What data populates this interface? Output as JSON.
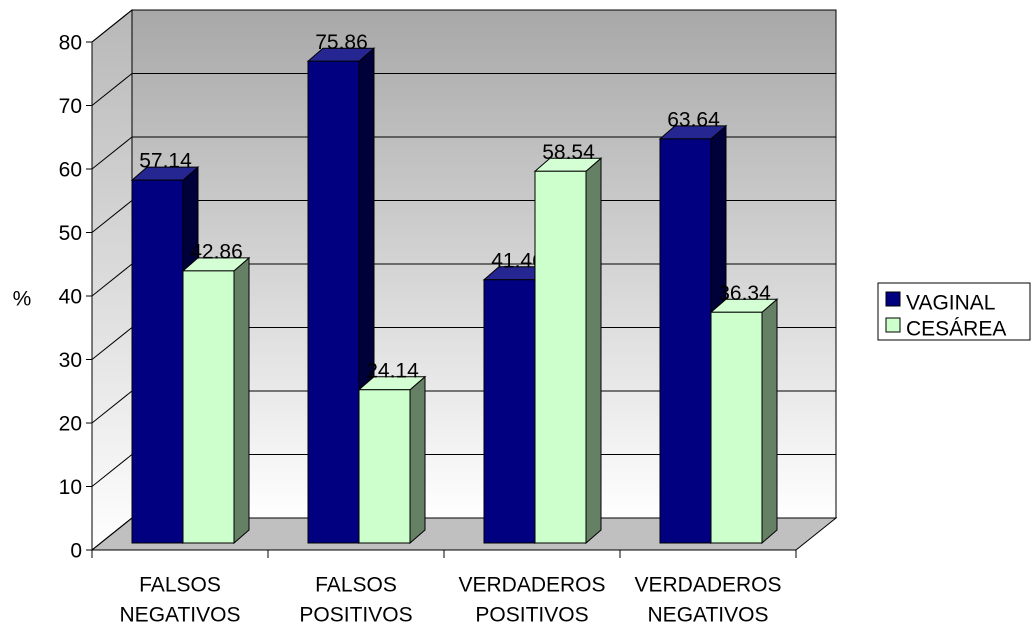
{
  "chart_data": {
    "type": "bar3d",
    "y_label": "%",
    "categories": [
      [
        "FALSOS",
        "NEGATIVOS"
      ],
      [
        "FALSOS",
        "POSITIVOS"
      ],
      [
        "VERDADEROS",
        "POSITIVOS"
      ],
      [
        "VERDADEROS",
        "NEGATIVOS"
      ]
    ],
    "series": [
      {
        "name": "VAGINAL",
        "color": "#000080",
        "values": [
          57.14,
          75.86,
          41.46,
          63.64
        ]
      },
      {
        "name": "CESÁREA",
        "color": "#ccffcc",
        "values": [
          42.86,
          24.14,
          58.54,
          36.34
        ]
      }
    ],
    "ylim": [
      0,
      80
    ],
    "yticks": [
      0,
      10,
      20,
      30,
      40,
      50,
      60,
      70,
      80
    ],
    "grid": true,
    "legend": "right"
  }
}
